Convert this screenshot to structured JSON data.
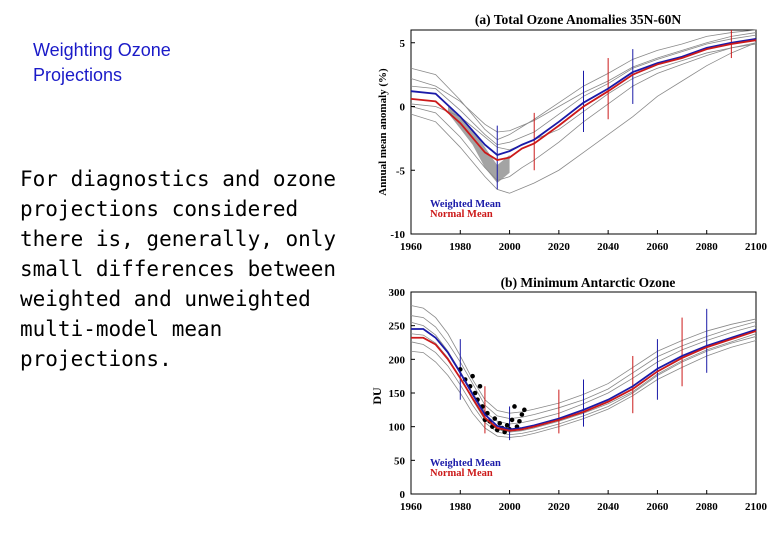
{
  "slide": {
    "title_lines": [
      "Weighting Ozone",
      "Projections"
    ],
    "body_lines": [
      "For diagnostics and ozone",
      "projections considered",
      "there is, generally, only",
      "small differences between",
      "weighted and unweighted",
      "multi-model mean",
      "projections."
    ]
  },
  "colors": {
    "title": "#1a1ac8",
    "weighted_mean": "#1a1aa8",
    "normal_mean": "#cc1a1a",
    "models": "#8a8a8a",
    "observations": "#000000"
  },
  "chart_data": [
    {
      "type": "line",
      "title": "(a) Total Ozone Anomalies 35N-60N",
      "xlabel": "",
      "ylabel": "Annual mean anomaly (%)",
      "xlim": [
        1960,
        2100
      ],
      "ylim": [
        -10,
        6
      ],
      "x_ticks": [
        "1960",
        "1980",
        "2000",
        "2020",
        "2040",
        "2060",
        "2080",
        "2100"
      ],
      "y_ticks": [
        "5",
        "0",
        "-5",
        "-10"
      ],
      "legend": [
        "Weighted Mean",
        "Normal Mean"
      ],
      "legend_position": "bottom-left",
      "x": [
        1960,
        1970,
        1980,
        1990,
        1995,
        2000,
        2005,
        2010,
        2020,
        2030,
        2040,
        2050,
        2060,
        2070,
        2080,
        2090,
        2100
      ],
      "series": [
        {
          "name": "Weighted Mean",
          "color_key": "weighted_mean",
          "values": [
            1.2,
            1.0,
            -0.8,
            -3.0,
            -3.8,
            -3.5,
            -3.0,
            -2.6,
            -1.2,
            0.3,
            1.4,
            2.7,
            3.4,
            3.9,
            4.6,
            5.0,
            5.3
          ]
        },
        {
          "name": "Normal Mean",
          "color_key": "normal_mean",
          "values": [
            0.6,
            0.4,
            -1.3,
            -3.6,
            -4.2,
            -4.0,
            -3.3,
            -2.9,
            -1.5,
            0.0,
            1.2,
            2.5,
            3.3,
            3.8,
            4.5,
            4.9,
            5.2
          ]
        }
      ],
      "models": [
        [
          3.0,
          2.5,
          0.5,
          -1.8,
          -2.6,
          -2.2,
          -1.6,
          -1.0,
          0.3,
          1.6,
          2.6,
          3.7,
          4.4,
          4.9,
          5.5,
          5.8,
          6.0
        ],
        [
          -0.6,
          -1.2,
          -3.2,
          -5.5,
          -6.5,
          -6.8,
          -6.4,
          -6.0,
          -5.0,
          -3.6,
          -2.2,
          -0.8,
          0.8,
          2.0,
          3.2,
          4.2,
          5.0
        ],
        [
          0.2,
          0.0,
          -0.8,
          -2.4,
          -3.2,
          -3.4,
          -3.0,
          -2.6,
          -1.8,
          -0.4,
          1.0,
          2.2,
          3.0,
          3.6,
          4.2,
          4.6,
          5.0
        ],
        [
          2.2,
          1.6,
          0.4,
          -1.4,
          -2.0,
          -1.9,
          -1.5,
          -1.1,
          0.0,
          1.1,
          2.0,
          3.1,
          3.8,
          4.4,
          5.0,
          5.5,
          5.8
        ],
        [
          0.0,
          -0.5,
          -2.4,
          -4.8,
          -5.8,
          -5.5,
          -4.8,
          -4.2,
          -2.8,
          -1.2,
          0.2,
          1.6,
          2.6,
          3.3,
          4.0,
          4.6,
          4.9
        ],
        [
          1.6,
          1.4,
          -0.3,
          -2.2,
          -3.0,
          -2.8,
          -2.4,
          -2.0,
          -0.6,
          0.8,
          1.8,
          3.0,
          3.7,
          4.3,
          4.9,
          5.3,
          5.6
        ]
      ],
      "observations_shading": {
        "x": [
          1975,
          1985,
          1990,
          1995,
          2000
        ],
        "low": [
          -0.5,
          -3.0,
          -4.8,
          -6.0,
          -5.2
        ],
        "high": [
          0.0,
          -1.8,
          -3.2,
          -4.6,
          -3.8
        ]
      },
      "uncertainty_bars": [
        {
          "x": 1995,
          "low": -6.5,
          "high": -1.5
        },
        {
          "x": 2010,
          "low": -5.0,
          "high": -0.5
        },
        {
          "x": 2030,
          "low": -2.0,
          "high": 2.8
        },
        {
          "x": 2040,
          "low": -1.0,
          "high": 3.8
        },
        {
          "x": 2050,
          "low": 0.2,
          "high": 4.5
        },
        {
          "x": 2090,
          "low": 3.8,
          "high": 6.0
        }
      ]
    },
    {
      "type": "line",
      "title": "(b) Minimum Antarctic Ozone",
      "xlabel": "",
      "ylabel": "DU",
      "xlim": [
        1960,
        2100
      ],
      "ylim": [
        0,
        300
      ],
      "x_ticks": [
        "1960",
        "1980",
        "2000",
        "2020",
        "2040",
        "2060",
        "2080",
        "2100"
      ],
      "y_ticks": [
        "300",
        "250",
        "200",
        "150",
        "100",
        "50",
        "0"
      ],
      "legend": [
        "Weighted Mean",
        "Normal Mean"
      ],
      "legend_position": "bottom-left",
      "x": [
        1960,
        1965,
        1970,
        1975,
        1980,
        1985,
        1990,
        1995,
        2000,
        2005,
        2010,
        2020,
        2030,
        2040,
        2050,
        2060,
        2070,
        2080,
        2090,
        2100
      ],
      "series": [
        {
          "name": "Weighted Mean",
          "color_key": "weighted_mean",
          "values": [
            245,
            245,
            232,
            210,
            180,
            148,
            118,
            101,
            96,
            98,
            102,
            112,
            125,
            140,
            160,
            186,
            205,
            220,
            232,
            244
          ]
        },
        {
          "name": "Normal Mean",
          "color_key": "normal_mean",
          "values": [
            232,
            232,
            222,
            200,
            172,
            142,
            113,
            98,
            94,
            96,
            100,
            110,
            122,
            137,
            156,
            182,
            202,
            218,
            230,
            242
          ]
        }
      ],
      "models": [
        [
          280,
          276,
          262,
          238,
          205,
          170,
          140,
          124,
          120,
          122,
          126,
          135,
          148,
          164,
          188,
          212,
          228,
          242,
          252,
          260
        ],
        [
          212,
          210,
          196,
          176,
          150,
          120,
          98,
          86,
          84,
          86,
          90,
          100,
          112,
          126,
          146,
          170,
          188,
          205,
          218,
          228
        ],
        [
          255,
          250,
          236,
          212,
          182,
          150,
          122,
          108,
          104,
          106,
          110,
          120,
          134,
          150,
          172,
          196,
          214,
          228,
          240,
          250
        ],
        [
          226,
          222,
          210,
          190,
          162,
          132,
          106,
          92,
          88,
          90,
          94,
          104,
          116,
          130,
          150,
          176,
          196,
          212,
          224,
          234
        ],
        [
          265,
          262,
          248,
          224,
          196,
          164,
          132,
          116,
          112,
          114,
          118,
          128,
          140,
          156,
          180,
          204,
          220,
          234,
          246,
          256
        ],
        [
          238,
          236,
          224,
          202,
          172,
          140,
          110,
          96,
          92,
          94,
          98,
          108,
          120,
          134,
          152,
          178,
          198,
          214,
          226,
          238
        ]
      ],
      "observations": [
        [
          1980,
          185
        ],
        [
          1982,
          170
        ],
        [
          1984,
          160
        ],
        [
          1985,
          175
        ],
        [
          1986,
          150
        ],
        [
          1987,
          140
        ],
        [
          1988,
          160
        ],
        [
          1989,
          130
        ],
        [
          1990,
          110
        ],
        [
          1991,
          120
        ],
        [
          1992,
          108
        ],
        [
          1993,
          100
        ],
        [
          1994,
          112
        ],
        [
          1995,
          95
        ],
        [
          1996,
          105
        ],
        [
          1997,
          98
        ],
        [
          1998,
          92
        ],
        [
          1999,
          102
        ],
        [
          2000,
          96
        ],
        [
          2001,
          110
        ],
        [
          2002,
          130
        ],
        [
          2003,
          100
        ],
        [
          2004,
          108
        ],
        [
          2005,
          118
        ],
        [
          2006,
          125
        ]
      ],
      "uncertainty_bars": [
        {
          "x": 1980,
          "low": 140,
          "high": 230
        },
        {
          "x": 1990,
          "low": 90,
          "high": 160
        },
        {
          "x": 2000,
          "low": 80,
          "high": 130
        },
        {
          "x": 2020,
          "low": 90,
          "high": 155
        },
        {
          "x": 2030,
          "low": 100,
          "high": 170
        },
        {
          "x": 2050,
          "low": 120,
          "high": 205
        },
        {
          "x": 2060,
          "low": 140,
          "high": 230
        },
        {
          "x": 2070,
          "low": 160,
          "high": 262
        },
        {
          "x": 2080,
          "low": 180,
          "high": 275
        }
      ]
    }
  ]
}
